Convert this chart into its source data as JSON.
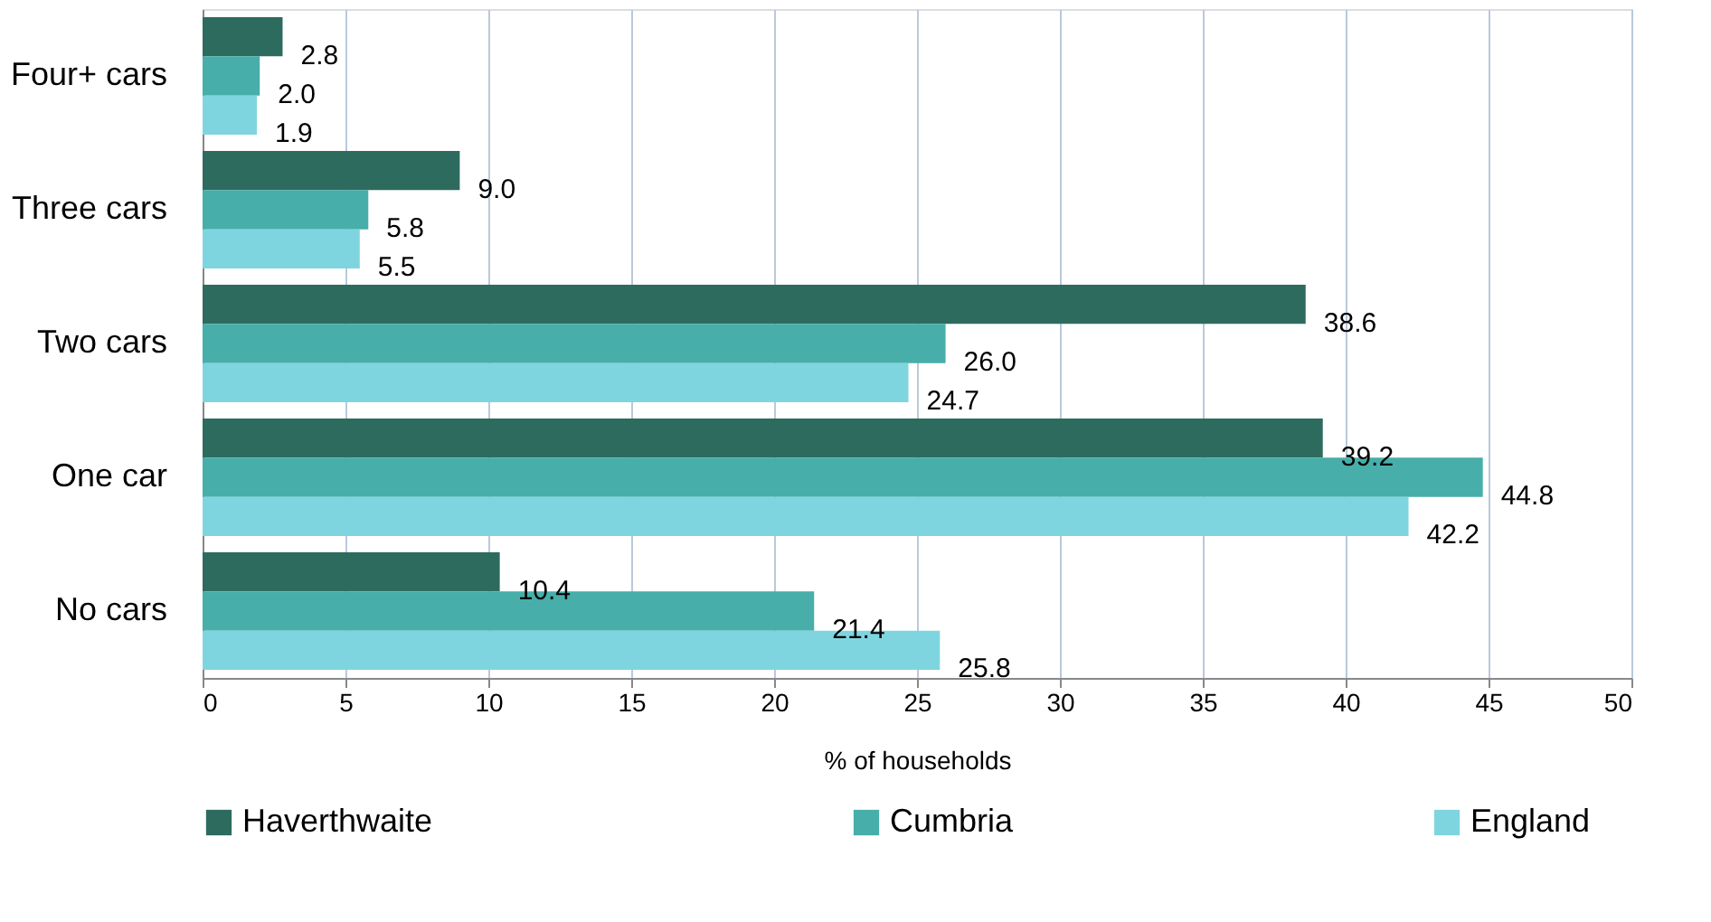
{
  "chart_data": {
    "type": "bar",
    "orientation": "horizontal",
    "xlabel": "% of households",
    "categories": [
      "Four+ cars",
      "Three cars",
      "Two cars",
      "One car",
      "No cars"
    ],
    "series": [
      {
        "name": "Haverthwaite",
        "color": "#2e6b5f",
        "values": [
          2.8,
          9.0,
          38.6,
          39.2,
          10.4
        ],
        "value_labels": [
          "2.8",
          "9.0",
          "38.6",
          "39.2",
          "10.4"
        ]
      },
      {
        "name": "Cumbria",
        "color": "#47aea9",
        "values": [
          2.0,
          5.8,
          26.0,
          44.8,
          21.4
        ],
        "value_labels": [
          "2.0",
          "5.8",
          "26.0",
          "44.8",
          "21.4"
        ]
      },
      {
        "name": "England",
        "color": "#7fd5df",
        "values": [
          1.9,
          5.5,
          24.7,
          42.2,
          25.8
        ],
        "value_labels": [
          "1.9",
          "5.5",
          "24.7",
          "42.2",
          "25.8"
        ]
      }
    ],
    "xlim": [
      0,
      50
    ],
    "xticks": [
      0,
      5,
      10,
      15,
      20,
      25,
      30,
      35,
      40,
      45,
      50
    ],
    "grid": "x",
    "legend": "bottom"
  }
}
